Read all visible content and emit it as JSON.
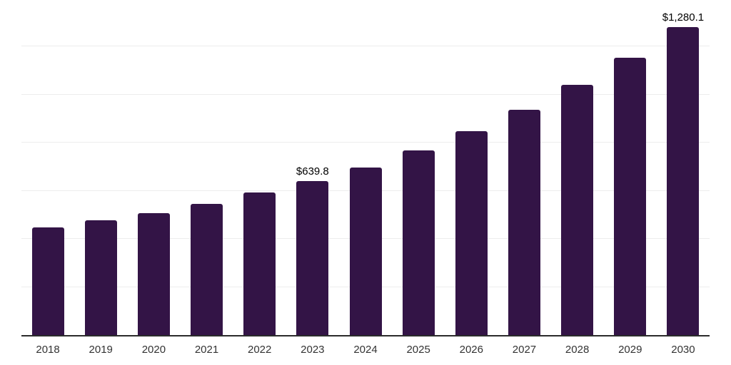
{
  "chart_data": {
    "type": "bar",
    "title": "",
    "xlabel": "",
    "ylabel": "",
    "categories": [
      "2018",
      "2019",
      "2020",
      "2021",
      "2022",
      "2023",
      "2024",
      "2025",
      "2026",
      "2027",
      "2028",
      "2029",
      "2030"
    ],
    "values": [
      448.7,
      477.5,
      508.1,
      546.7,
      592.0,
      639.8,
      698.0,
      769.1,
      848.3,
      937.0,
      1040.4,
      1154.7,
      1280.1
    ],
    "data_labels": [
      {
        "index": 5,
        "text": "$639.8"
      },
      {
        "index": 12,
        "text": "$1,280.1"
      }
    ],
    "ylim": [
      0,
      1400
    ],
    "gridline_step": 200,
    "grid": true,
    "legend": false,
    "y_axis_labels_shown": false,
    "colors": {
      "bar": "#331446",
      "gridline": "#ededed",
      "axis_line": "#2b2b2b",
      "tick_label": "#333333",
      "data_label": "#000000",
      "background": "#ffffff"
    }
  }
}
